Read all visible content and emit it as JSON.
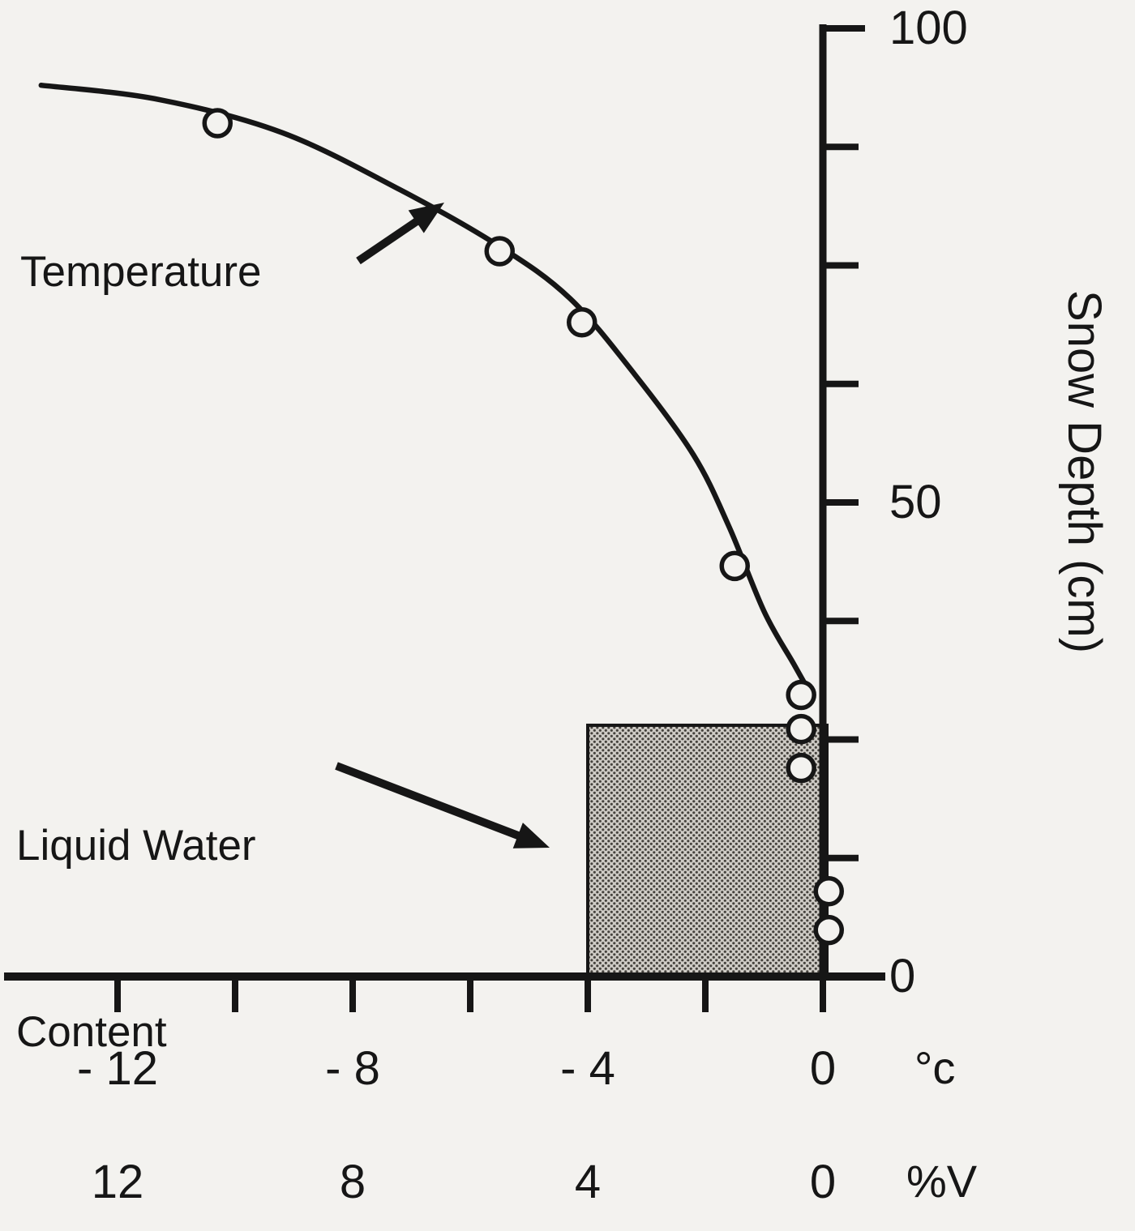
{
  "figure": {
    "background_color": "#f3f2ef",
    "ink_color": "#161616",
    "stipple_light": "#cfccc6",
    "stipple_dark": "#45423d"
  },
  "annotations": {
    "temperature_label": "Temperature",
    "liquid_water_label_line1": "Liquid Water",
    "liquid_water_label_line2": "Content",
    "depth_axis_label": "Snow Depth (cm)",
    "temp_unit_label": "°c",
    "lwc_unit_label": "%V"
  },
  "chart_data": {
    "type": "line",
    "title": "",
    "depth_axis": {
      "label": "Snow Depth (cm)",
      "range_cm": [
        0,
        100
      ],
      "minor_tick_step_cm": 12.5,
      "labeled_ticks": [
        {
          "value": 100,
          "label": "100"
        },
        {
          "value": 50,
          "label": "50"
        },
        {
          "value": 0,
          "label": "0"
        }
      ]
    },
    "temperature_axis": {
      "unit": "°c",
      "tick_min_c": -12,
      "tick_max_c": 0,
      "tick_step_c": 2,
      "labeled_ticks": [
        {
          "value": -12,
          "label": "- 12"
        },
        {
          "value": -8,
          "label": "- 8"
        },
        {
          "value": -4,
          "label": "- 4"
        },
        {
          "value": 0,
          "label": "0"
        }
      ]
    },
    "lwc_axis": {
      "unit": "%V",
      "labeled_ticks": [
        {
          "value": 12,
          "label": "12"
        },
        {
          "value": 8,
          "label": "8"
        },
        {
          "value": 4,
          "label": "4"
        },
        {
          "value": 0,
          "label": "0"
        }
      ]
    },
    "temperature_points": [
      {
        "temp_c": -10.3,
        "depth_cm": 90.0
      },
      {
        "temp_c": -5.5,
        "depth_cm": 76.5
      },
      {
        "temp_c": -4.1,
        "depth_cm": 69.0
      },
      {
        "temp_c": -1.5,
        "depth_cm": 43.3
      },
      {
        "temp_c": -0.37,
        "depth_cm": 29.7
      },
      {
        "temp_c": -0.37,
        "depth_cm": 26.1
      },
      {
        "temp_c": -0.37,
        "depth_cm": 22.0
      },
      {
        "temp_c": 0.1,
        "depth_cm": 9.0
      },
      {
        "temp_c": 0.1,
        "depth_cm": 4.9
      }
    ],
    "temperature_curve": [
      {
        "temp_c": -13.3,
        "depth_cm": 94.0
      },
      {
        "temp_c": -11.3,
        "depth_cm": 92.5
      },
      {
        "temp_c": -9.2,
        "depth_cm": 89.0
      },
      {
        "temp_c": -7.2,
        "depth_cm": 83.0
      },
      {
        "temp_c": -5.5,
        "depth_cm": 77.0
      },
      {
        "temp_c": -4.3,
        "depth_cm": 71.5
      },
      {
        "temp_c": -3.2,
        "depth_cm": 63.5
      },
      {
        "temp_c": -2.2,
        "depth_cm": 55.0
      },
      {
        "temp_c": -1.6,
        "depth_cm": 47.5
      },
      {
        "temp_c": -1.0,
        "depth_cm": 38.5
      },
      {
        "temp_c": -0.5,
        "depth_cm": 33.0
      },
      {
        "temp_c": -0.2,
        "depth_cm": 29.7
      }
    ],
    "liquid_water_box": {
      "lwc_percent_v": 4,
      "depth_bottom_cm": 0,
      "depth_top_cm": 26.5
    }
  }
}
